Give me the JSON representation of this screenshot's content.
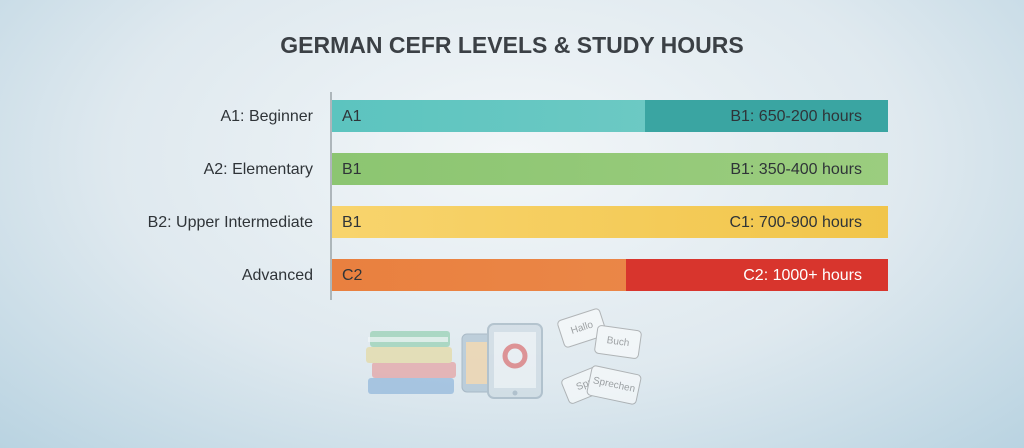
{
  "header": {
    "title": "GERMAN CEFR LEVELS & STUDY HOURS"
  },
  "rows": [
    {
      "label": "A1: Beginner",
      "start": "A1",
      "hours": "B1: 650-200 hours"
    },
    {
      "label": "A2: Elementary",
      "start": "B1",
      "hours": "B1: 350-400 hours"
    },
    {
      "label": "B2: Upper Intermediate",
      "start": "B1",
      "hours": "C1: 700-900 hours"
    },
    {
      "label": "Advanced",
      "start": "C2",
      "hours": "C2: 1000+ hours"
    }
  ],
  "cards": [
    "Hallo",
    "Buch",
    "Spr",
    "Sprechen"
  ]
}
